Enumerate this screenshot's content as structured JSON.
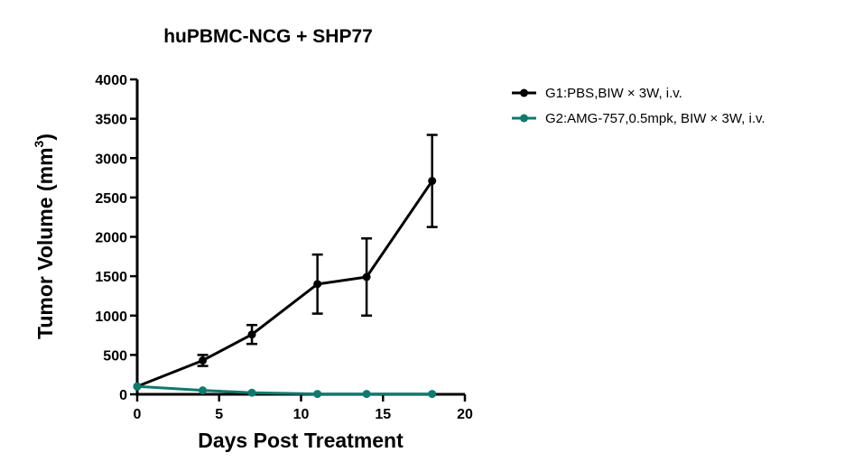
{
  "chart_data": {
    "type": "line",
    "title": "huPBMC-NCG + SHP77",
    "xlabel": "Days Post Treatment",
    "ylabel_main": "Tumor Volume (mm",
    "ylabel_superscript": "3",
    "ylabel_close": ")",
    "xlim": [
      0,
      20
    ],
    "ylim": [
      0,
      4000
    ],
    "xticks": [
      0,
      5,
      10,
      15,
      20
    ],
    "yticks": [
      0,
      500,
      1000,
      1500,
      2000,
      2500,
      3000,
      3500,
      4000
    ],
    "legend_position": "right",
    "series": [
      {
        "name": "G1:PBS,BIW × 3W,  i.v.",
        "color": "#000000",
        "x": [
          0,
          4,
          7,
          11,
          14,
          18
        ],
        "y": [
          100,
          430,
          760,
          1400,
          1490,
          2710
        ],
        "error": [
          0,
          70,
          120,
          375,
          490,
          585
        ]
      },
      {
        "name": "G2:AMG-757,0.5mpk,  BIW × 3W,  i.v.",
        "color": "#0f7a6e",
        "x": [
          0,
          4,
          7,
          11,
          14,
          18
        ],
        "y": [
          100,
          50,
          20,
          5,
          5,
          5
        ],
        "error": [
          0,
          0,
          0,
          0,
          0,
          0
        ]
      }
    ]
  }
}
